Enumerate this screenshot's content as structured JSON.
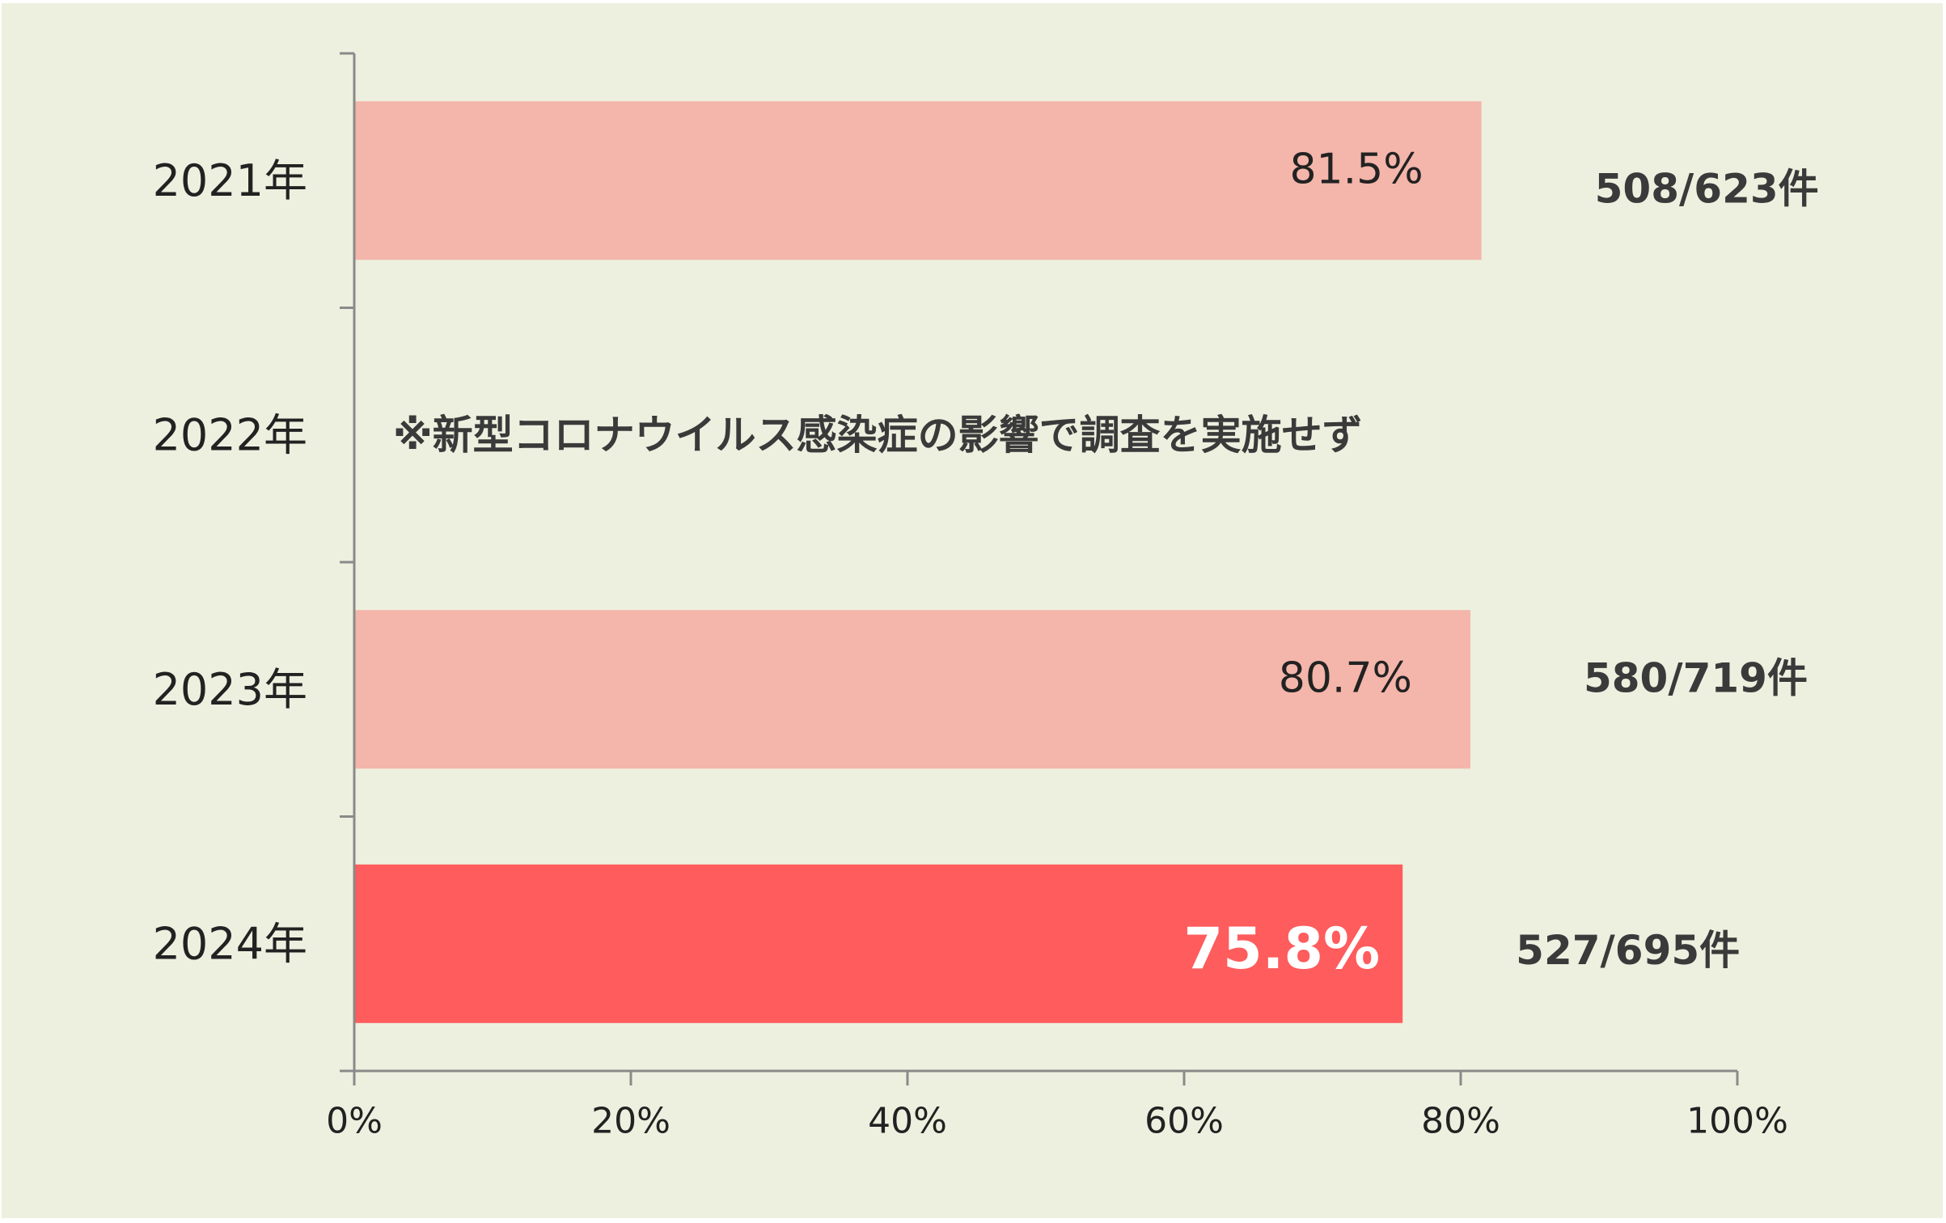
{
  "chart_data": {
    "type": "bar",
    "orientation": "horizontal",
    "categories": [
      "2021年",
      "2022年",
      "2023年",
      "2024年"
    ],
    "values": [
      81.5,
      null,
      80.7,
      75.8
    ],
    "value_labels": [
      "81.5%",
      "",
      "80.7%",
      "75.8%"
    ],
    "count_labels": [
      "508/623件",
      "",
      "580/719件",
      "527/695件"
    ],
    "note": "※新型コロナウイルス感染症の影響で調査を実施せず",
    "note_category_index": 1,
    "highlight_index": 3,
    "xlim": [
      0,
      100
    ],
    "x_ticks": [
      "0%",
      "20%",
      "40%",
      "60%",
      "80%",
      "100%"
    ],
    "grid": false,
    "colors": {
      "bar": "#f4b5aa",
      "bar_highlight": "#fe5c5d",
      "axis": "#8a8a8a",
      "text": "#222222",
      "count_text": "#3a3a3a",
      "background": "#edf0df"
    }
  }
}
